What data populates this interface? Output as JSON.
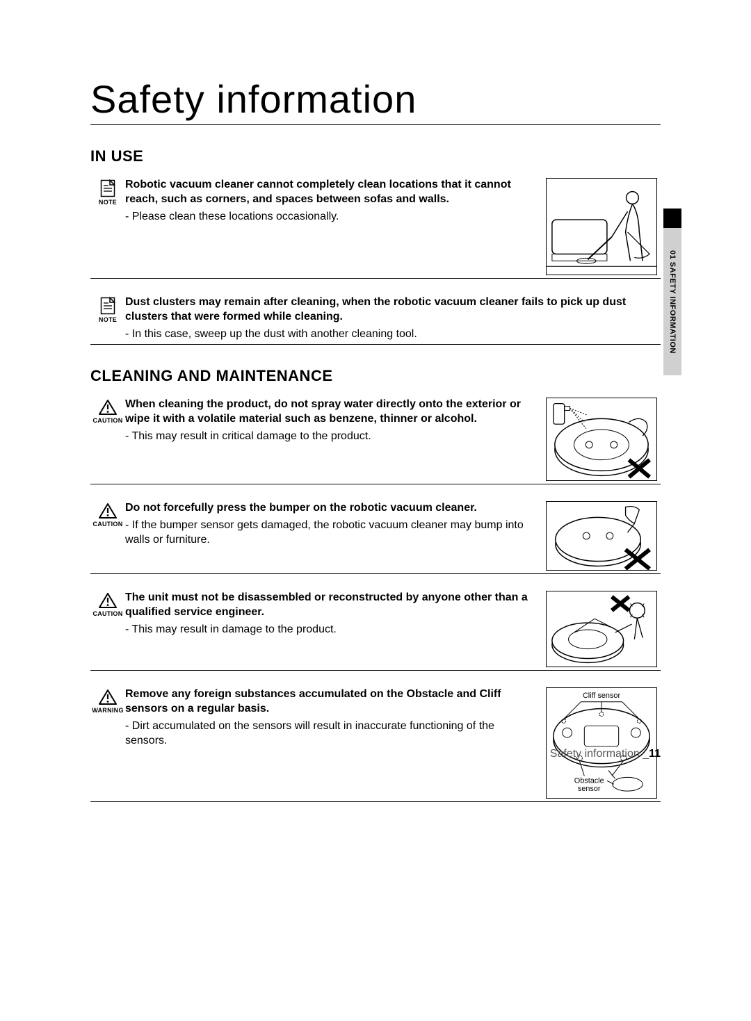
{
  "page": {
    "title": "Safety information",
    "side_tab": "01 SAFETY INFORMATION",
    "footer_text": "Safety information _",
    "page_number": "11"
  },
  "labels": {
    "note": "NOTE",
    "caution": "CAUTION",
    "warning": "WARNING"
  },
  "sections": [
    {
      "heading": "IN USE",
      "items": [
        {
          "label": "note",
          "bold": "Robotic vacuum cleaner cannot completely clean locations that it cannot reach, such as corners, and spaces between sofas and walls.",
          "detail": "- Please clean these locations occasionally.",
          "illus": "person-cleaning",
          "illus_h": 140
        },
        {
          "label": "note",
          "bold": "Dust clusters may remain after cleaning, when the robotic vacuum cleaner fails to pick up dust clusters that were formed while cleaning.",
          "detail": "- In this case, sweep up the dust with another cleaning tool.",
          "illus": null
        }
      ]
    },
    {
      "heading": "CLEANING AND MAINTENANCE",
      "items": [
        {
          "label": "caution",
          "bold": "When cleaning the product, do not spray water directly onto the exterior or wipe it with a volatile material such as benzene, thinner or alcohol.",
          "detail": "- This may result in critical damage to the product.",
          "illus": "robot-spray",
          "illus_h": 120
        },
        {
          "label": "caution",
          "bold": "Do not forcefully press the bumper on the robotic vacuum cleaner.",
          "detail": "- If the bumper sensor gets damaged, the robotic vacuum cleaner may bump into walls or furniture.",
          "illus": "robot-press",
          "illus_h": 100
        },
        {
          "label": "caution",
          "bold": "The unit must not be disassembled or reconstructed by anyone other than a qualified service engineer.",
          "detail": "- This may result in damage to the product.",
          "illus": "robot-disassemble",
          "illus_h": 110
        },
        {
          "label": "warning",
          "bold": "Remove any foreign substances accumulated on the Obstacle and Cliff sensors on a regular basis.",
          "detail": "- Dirt accumulated on the sensors will result in inaccurate functioning of the sensors.",
          "illus": "robot-sensors",
          "illus_h": 160,
          "callouts": {
            "top": "Cliff sensor",
            "bottom": "Obstacle sensor"
          }
        }
      ]
    }
  ],
  "style": {
    "text_color": "#000000",
    "bg_color": "#ffffff",
    "title_fontsize": 56,
    "heading_fontsize": 22,
    "body_fontsize": 16,
    "label_fontsize": 9,
    "sidetab_gray": "#d0d0d0"
  }
}
